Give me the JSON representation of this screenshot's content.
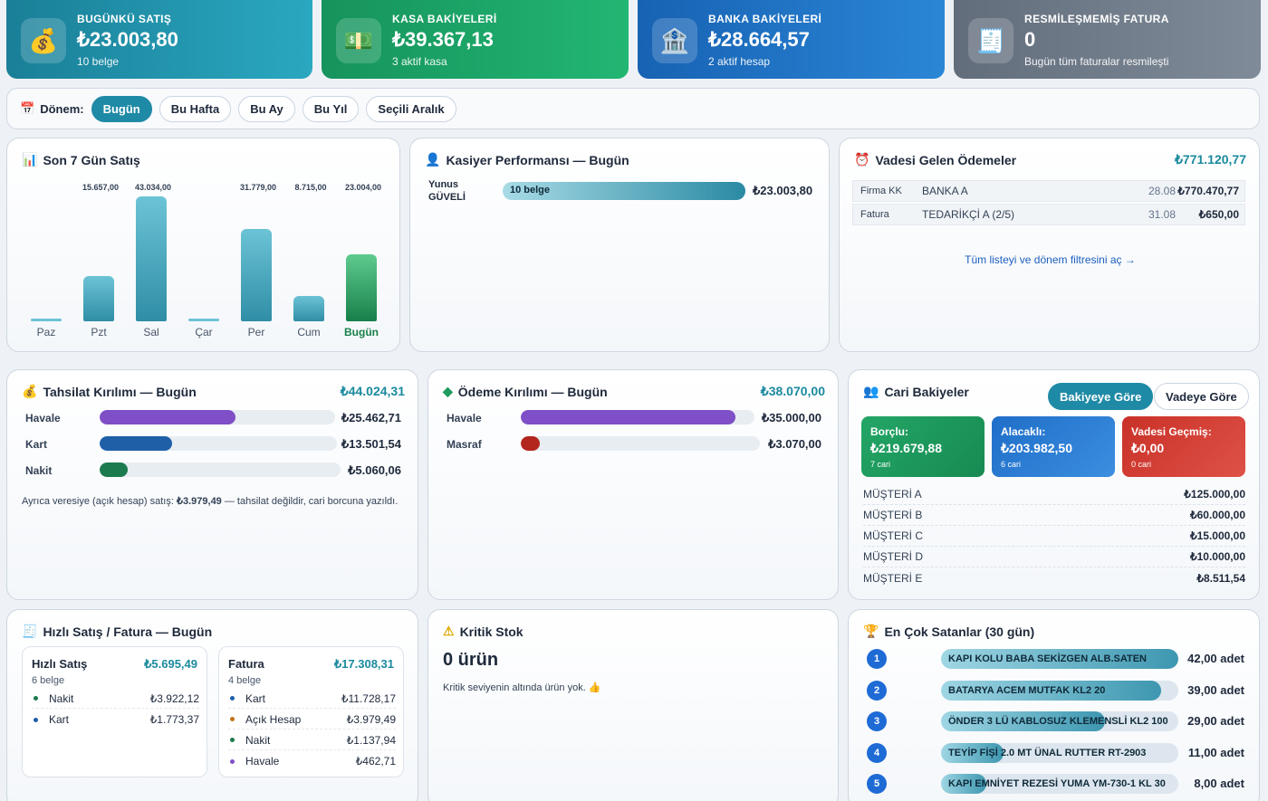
{
  "kpis": [
    {
      "title": "BUGÜNKÜ SATIŞ",
      "value": "₺23.003,80",
      "sub": "10 belge",
      "icon": "money-bag-icon",
      "color": "#1f8fa8"
    },
    {
      "title": "KASA BAKİYELERİ",
      "value": "₺39.367,13",
      "sub": "3 aktif kasa",
      "icon": "cash-icon",
      "color": "#1ea56a"
    },
    {
      "title": "BANKA BAKİYELERİ",
      "value": "₺28.664,57",
      "sub": "2 aktif hesap",
      "icon": "bank-icon",
      "color": "#1a6fc4"
    },
    {
      "title": "RESMİLEŞMEMİŞ FATURA",
      "value": "0",
      "sub": "Bugün tüm faturalar resmileşti",
      "icon": "receipt-icon",
      "color": "#6b7685"
    }
  ],
  "filter": {
    "label": "Dönem:",
    "chips": [
      "Bugün",
      "Bu Hafta",
      "Bu Ay",
      "Bu Yıl",
      "Seçili Aralık"
    ],
    "active": "Bugün"
  },
  "sales7": {
    "title": "Son 7 Gün Satış",
    "chart_data": {
      "type": "bar",
      "categories": [
        "Paz",
        "Pzt",
        "Sal",
        "Çar",
        "Per",
        "Cum",
        "Bugün"
      ],
      "values": [
        0,
        15657.0,
        43034.0,
        0,
        31779.0,
        8715.0,
        23004.0
      ],
      "value_labels": [
        "",
        "15.657,00",
        "43.034,00",
        "",
        "31.779,00",
        "8.715,00",
        "23.004,00"
      ],
      "highlight": "Bugün",
      "colors": {
        "normal": "#3fa3bb",
        "today": "#1f9a5b"
      }
    }
  },
  "cashier": {
    "title": "Kasiyer Performansı — Bugün",
    "rows": [
      {
        "name": "Yunus GÜVELİ",
        "count": "10 belge",
        "amount": "₺23.003,80",
        "ratio": 1.0
      }
    ]
  },
  "due": {
    "title": "Vadesi Gelen Ödemeler",
    "total": "₺771.120,77",
    "rows": [
      {
        "type": "Firma KK",
        "party": "BANKA A",
        "date": "28.08",
        "amount": "₺770.470,77"
      },
      {
        "type": "Fatura",
        "party": "TEDARİKÇİ A (2/5)",
        "date": "31.08",
        "amount": "₺650,00"
      }
    ],
    "link": "Tüm listeyi ve dönem filtresini aç →"
  },
  "collection": {
    "title": "Tahsilat Kırılımı — Bugün",
    "total": "₺44.024,31",
    "rows": [
      {
        "label": "Havale",
        "amount": "₺25.462,71",
        "ratio": 0.578,
        "color": "#7e4fc6"
      },
      {
        "label": "Kart",
        "amount": "₺13.501,54",
        "ratio": 0.307,
        "color": "#1f5fa8"
      },
      {
        "label": "Nakit",
        "amount": "₺5.060,06",
        "ratio": 0.115,
        "color": "#1c7a4f"
      }
    ],
    "note": "Ayrıca veresiye (açık hesap) satış:",
    "note_amount": "₺3.979,49",
    "note_tail": "— tahsilat değildir, cari borcuna yazıldı."
  },
  "payment": {
    "title": "Ödeme Kırılımı — Bugün",
    "total": "₺38.070,00",
    "rows": [
      {
        "label": "Havale",
        "amount": "₺35.000,00",
        "ratio": 0.919,
        "color": "#7e4fc6"
      },
      {
        "label": "Masraf",
        "amount": "₺3.070,00",
        "ratio": 0.081,
        "color": "#b3261e"
      }
    ]
  },
  "cari": {
    "title": "Cari Bakiyeler",
    "tabs": [
      "Bakiyeye Göre",
      "Vadeye Göre"
    ],
    "active_tab": "Bakiyeye Göre",
    "boxes": [
      {
        "label": "Borçlu:",
        "value": "₺219.679,88",
        "sub": "7 cari",
        "color": "#1e9a5e"
      },
      {
        "label": "Alacaklı:",
        "value": "₺203.982,50",
        "sub": "6 cari",
        "color": "#1d6ec7"
      },
      {
        "label": "Vadesi Geçmiş:",
        "value": "₺0,00",
        "sub": "0 cari",
        "color": "#c8372d"
      }
    ],
    "rows": [
      {
        "name": "MÜŞTERİ A",
        "amount": "₺125.000,00"
      },
      {
        "name": "MÜŞTERİ B",
        "amount": "₺60.000,00"
      },
      {
        "name": "MÜŞTERİ C",
        "amount": "₺15.000,00"
      },
      {
        "name": "MÜŞTERİ D",
        "amount": "₺10.000,00"
      },
      {
        "name": "MÜŞTERİ E",
        "amount": "₺8.511,54"
      }
    ]
  },
  "fast": {
    "title": "Hızlı Satış / Fatura — Bugün",
    "left": {
      "title": "Hızlı Satış",
      "total": "₺5.695,49",
      "sub": "6 belge",
      "rows": [
        {
          "label": "Nakit",
          "amount": "₺3.922,12",
          "color": "#1c7a4f"
        },
        {
          "label": "Kart",
          "amount": "₺1.773,37",
          "color": "#1f5fa8"
        }
      ]
    },
    "right": {
      "title": "Fatura",
      "total": "₺17.308,31",
      "sub": "4 belge",
      "rows": [
        {
          "label": "Kart",
          "amount": "₺11.728,17",
          "color": "#1f5fa8"
        },
        {
          "label": "Açık Hesap",
          "amount": "₺3.979,49",
          "color": "#c0721a"
        },
        {
          "label": "Nakit",
          "amount": "₺1.137,94",
          "color": "#1c7a4f"
        },
        {
          "label": "Havale",
          "amount": "₺462,71",
          "color": "#7e4fc6"
        }
      ]
    }
  },
  "stock": {
    "title": "Kritik Stok",
    "value": "0 ürün",
    "note": "Kritik seviyenin altında ürün yok. 👍"
  },
  "top": {
    "title": "En Çok Satanlar (30 gün)",
    "rows": [
      {
        "rank": "1",
        "name": "KAPI KOLU BABA SEKİZGEN ALB.SATEN",
        "qty": "42,00 adet",
        "ratio": 1.0
      },
      {
        "rank": "2",
        "name": "BATARYA ACEM MUTFAK KL2 20",
        "qty": "39,00 adet",
        "ratio": 0.929
      },
      {
        "rank": "3",
        "name": "ÖNDER 3 LÜ KABLOSUZ KLEMENSLİ KL2 100",
        "qty": "29,00 adet",
        "ratio": 0.69
      },
      {
        "rank": "4",
        "name": "TEYİP FİŞİ 2.0 MT ÜNAL RUTTER RT-2903",
        "qty": "11,00 adet",
        "ratio": 0.262
      },
      {
        "rank": "5",
        "name": "KAPI EMNİYET REZESİ YUMA YM-730-1 KL 30",
        "qty": "8,00 adet",
        "ratio": 0.19
      }
    ]
  }
}
